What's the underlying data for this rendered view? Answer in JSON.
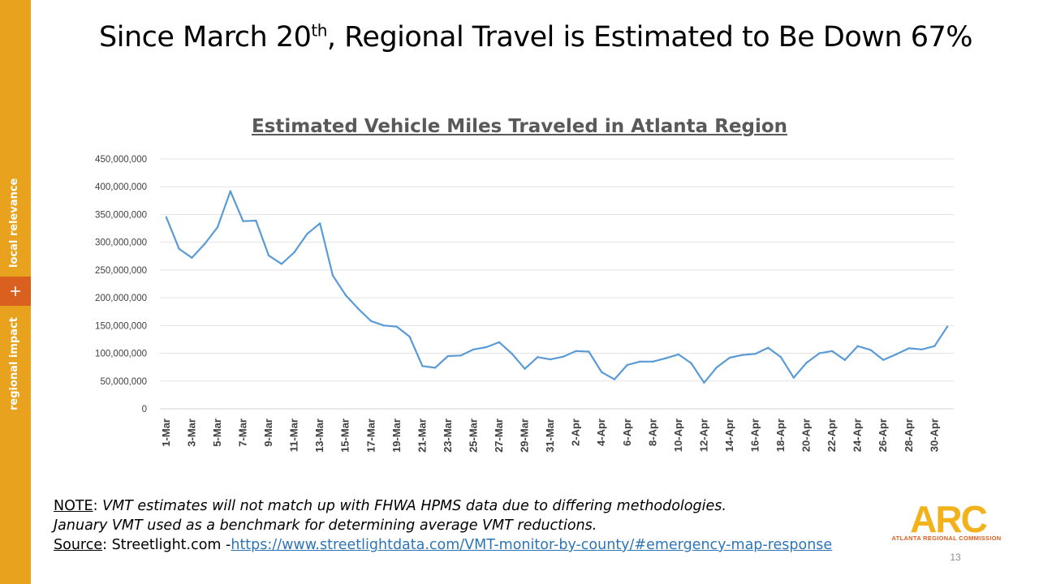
{
  "slide": {
    "title_pre": "Since March 20",
    "title_sup": "th",
    "title_post": ", Regional Travel is Estimated to Be Down 67%",
    "page_number": "13"
  },
  "sidebar": {
    "label_top": "local relevance",
    "label_bottom": "regional impact",
    "plus_icon": "plus-icon",
    "colors": {
      "bar": "#e8a21e",
      "plus_box": "#d9601e"
    }
  },
  "note": {
    "note_label": "NOTE",
    "note_sep": ":  ",
    "note_text_1": "VMT estimates will not match up with FHWA HPMS data due to differing methodologies.",
    "note_text_2": "January VMT used as a benchmark for determining average VMT reductions.",
    "source_label": "Source",
    "source_text": ": Streetlight.com -",
    "source_link": "https://www.streetlightdata.com/VMT-monitor-by-county/#emergency-map-response"
  },
  "logo": {
    "text": "ARC",
    "subtitle": "ATLANTA REGIONAL COMMISSION",
    "colors": {
      "main": "#f2b21b",
      "accent": "#d9601e"
    }
  },
  "chart_data": {
    "type": "line",
    "title": "Estimated Vehicle Miles Traveled in Atlanta Region",
    "xlabel": "",
    "ylabel": "",
    "ylim": [
      0,
      450000000
    ],
    "y_ticks": [
      "450,000,000",
      "400,000,000",
      "350,000,000",
      "300,000,000",
      "250,000,000",
      "200,000,000",
      "150,000,000",
      "100,000,000",
      "50,000,000",
      "0"
    ],
    "x_tick_labels": [
      "1-Mar",
      "3-Mar",
      "5-Mar",
      "7-Mar",
      "9-Mar",
      "11-Mar",
      "13-Mar",
      "15-Mar",
      "17-Mar",
      "19-Mar",
      "21-Mar",
      "23-Mar",
      "25-Mar",
      "27-Mar",
      "29-Mar",
      "31-Mar",
      "2-Apr",
      "4-Apr",
      "6-Apr",
      "8-Apr",
      "10-Apr",
      "12-Apr",
      "14-Apr",
      "16-Apr",
      "18-Apr",
      "20-Apr",
      "22-Apr",
      "24-Apr",
      "26-Apr",
      "28-Apr",
      "30-Apr"
    ],
    "grid": true,
    "line_color": "#5b9bd5",
    "x": [
      "1-Mar",
      "2-Mar",
      "3-Mar",
      "4-Mar",
      "5-Mar",
      "6-Mar",
      "7-Mar",
      "8-Mar",
      "9-Mar",
      "10-Mar",
      "11-Mar",
      "12-Mar",
      "13-Mar",
      "14-Mar",
      "15-Mar",
      "16-Mar",
      "17-Mar",
      "18-Mar",
      "19-Mar",
      "20-Mar",
      "21-Mar",
      "22-Mar",
      "23-Mar",
      "24-Mar",
      "25-Mar",
      "26-Mar",
      "27-Mar",
      "28-Mar",
      "29-Mar",
      "30-Mar",
      "31-Mar",
      "1-Apr",
      "2-Apr",
      "3-Apr",
      "4-Apr",
      "5-Apr",
      "6-Apr",
      "7-Apr",
      "8-Apr",
      "9-Apr",
      "10-Apr",
      "11-Apr",
      "12-Apr",
      "13-Apr",
      "14-Apr",
      "15-Apr",
      "16-Apr",
      "17-Apr",
      "18-Apr",
      "19-Apr",
      "20-Apr",
      "21-Apr",
      "22-Apr",
      "23-Apr",
      "24-Apr",
      "25-Apr",
      "26-Apr",
      "27-Apr",
      "28-Apr",
      "29-Apr",
      "30-Apr",
      "1-May"
    ],
    "values": [
      345000000,
      288000000,
      272000000,
      297000000,
      327000000,
      392000000,
      338000000,
      339000000,
      276000000,
      261000000,
      282000000,
      315000000,
      334000000,
      240000000,
      205000000,
      180000000,
      158000000,
      150000000,
      148000000,
      130000000,
      77000000,
      74000000,
      95000000,
      96000000,
      107000000,
      111000000,
      120000000,
      99000000,
      72000000,
      93000000,
      89000000,
      94000000,
      104000000,
      103000000,
      66000000,
      53000000,
      79000000,
      85000000,
      85000000,
      91000000,
      98000000,
      82000000,
      47000000,
      75000000,
      92000000,
      97000000,
      99000000,
      110000000,
      93000000,
      56000000,
      83000000,
      100000000,
      104000000,
      88000000,
      113000000,
      106000000,
      88000000,
      98000000,
      109000000,
      107000000,
      113000000,
      148000000
    ]
  }
}
